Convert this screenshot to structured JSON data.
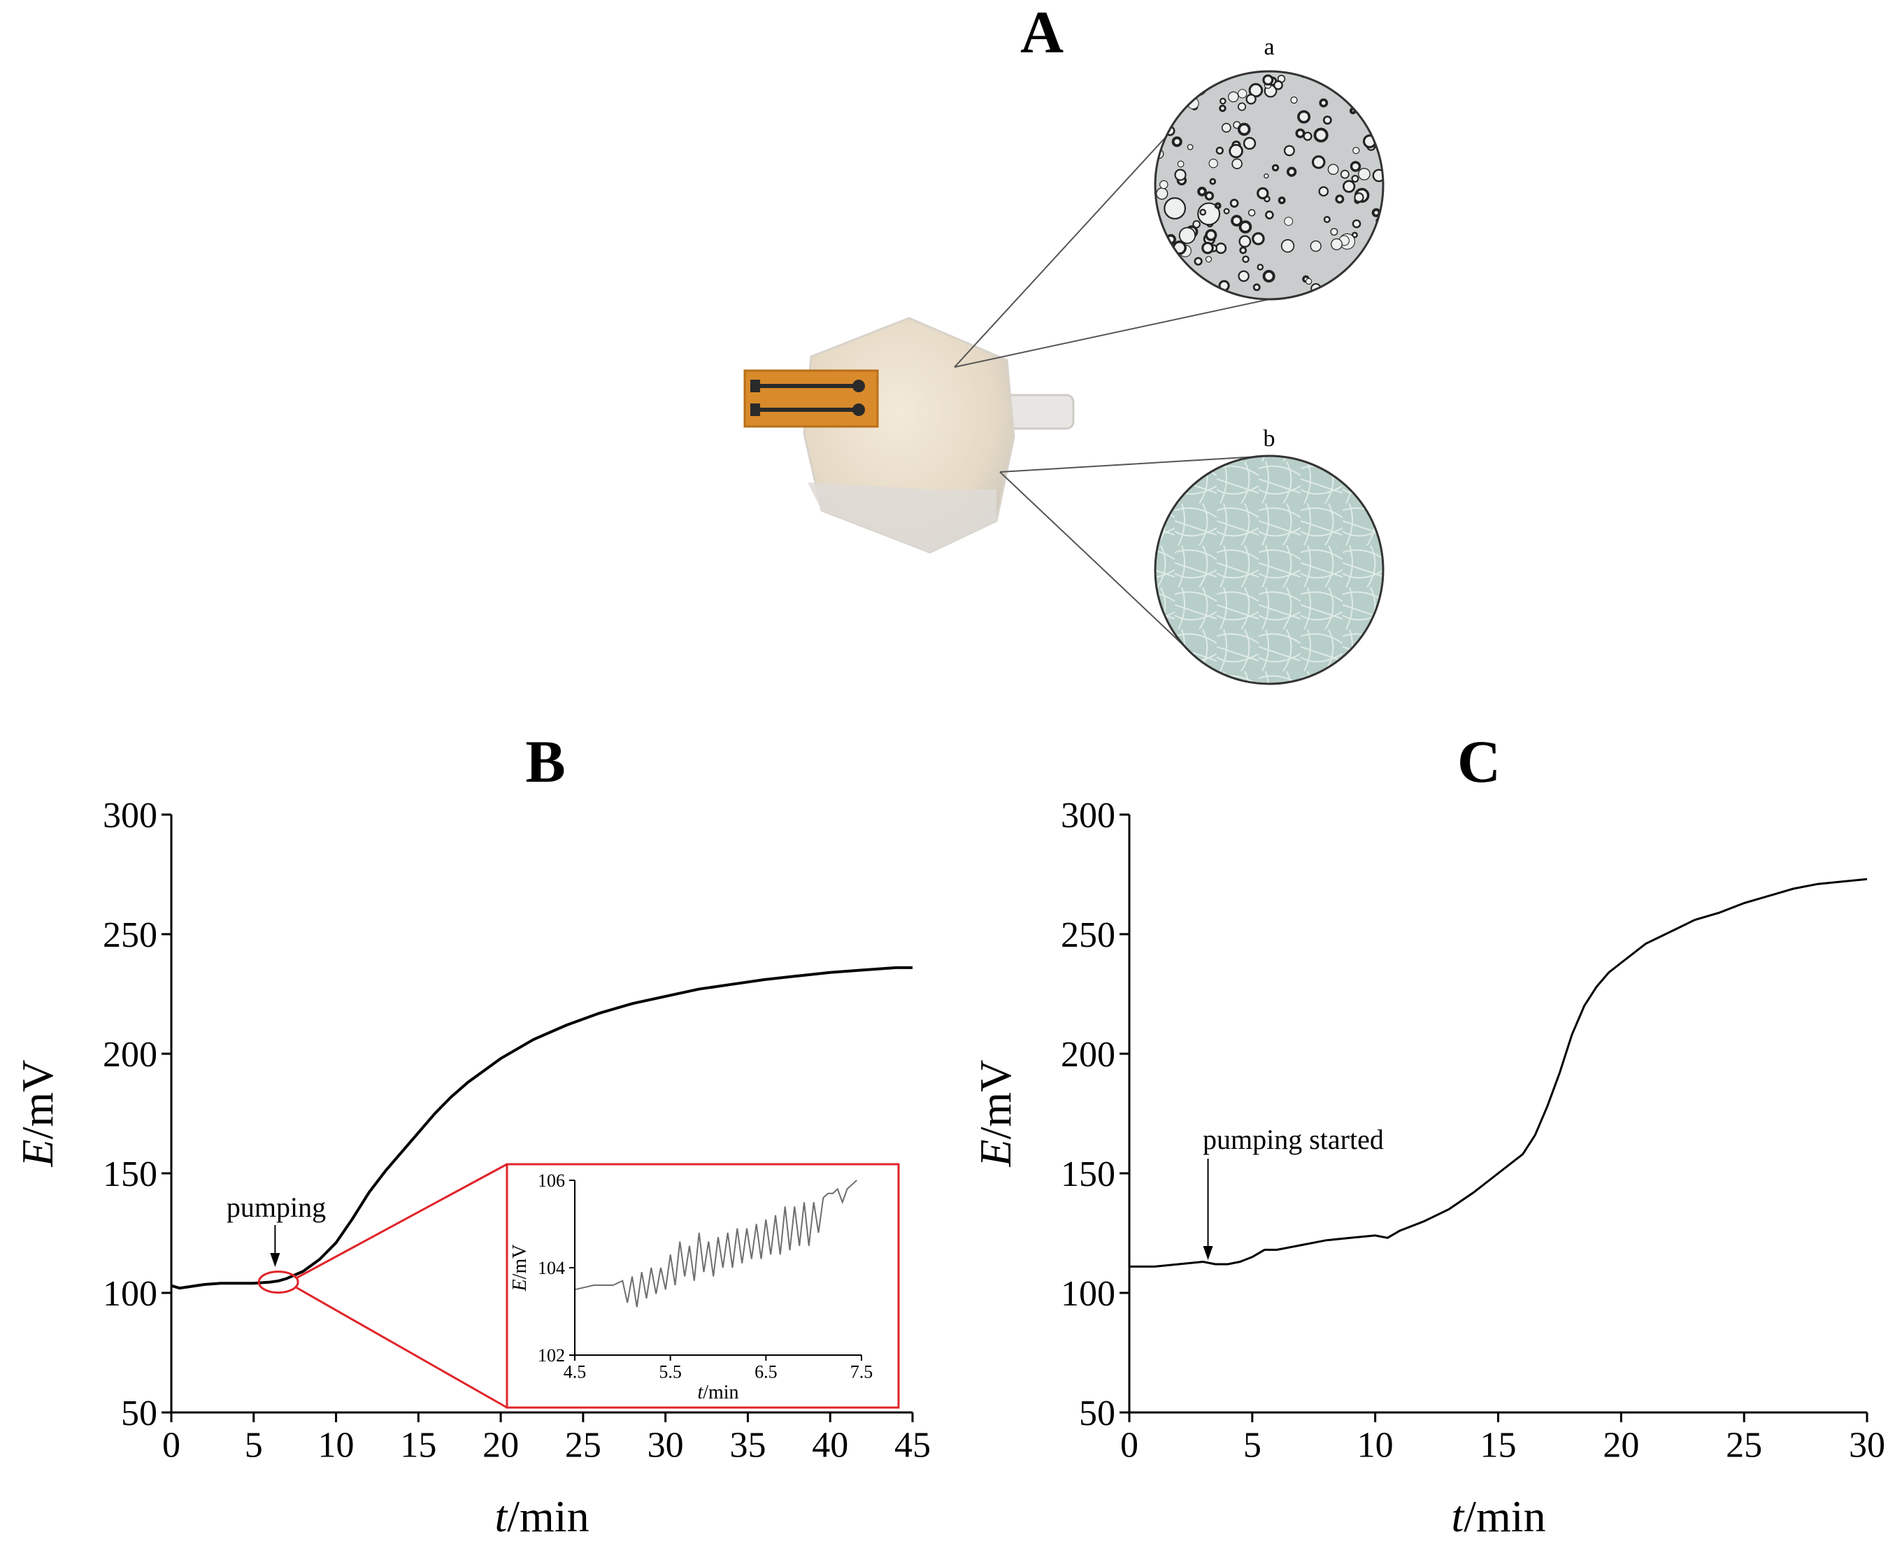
{
  "panels": {
    "A": {
      "letter": "A",
      "inset_a_label": "a",
      "inset_b_label": "b"
    },
    "B": {
      "letter": "B",
      "annotation": "pumping",
      "xlabel_italic": "t",
      "xlabel_rest": "/min",
      "ylabel_italic": "E",
      "ylabel_rest": "/mV",
      "inset": {
        "xlabel_italic": "t",
        "xlabel_rest": "/min",
        "ylabel_italic": "E",
        "ylabel_rest": "/mV"
      }
    },
    "C": {
      "letter": "C",
      "annotation": "pumping started",
      "xlabel_italic": "t",
      "xlabel_rest": "/min",
      "ylabel_italic": "E",
      "ylabel_rest": "/mV"
    }
  },
  "colors": {
    "line": "#000000",
    "inset_line": "#6e6e6e",
    "highlight": "#e0242a",
    "device_body": "#e9dfcf",
    "device_flex": "#d98b2b",
    "micro_a_bg": "#c9cdcd",
    "micro_b_bg": "#b8cec9"
  },
  "chart_data": [
    {
      "id": "B",
      "type": "line",
      "xlim": [
        0,
        45
      ],
      "ylim": [
        50,
        300
      ],
      "xticks": [
        0,
        5,
        10,
        15,
        20,
        25,
        30,
        35,
        40,
        45
      ],
      "yticks": [
        50,
        100,
        150,
        200,
        250,
        300
      ],
      "series": [
        {
          "x": [
            0,
            0.5,
            1,
            2,
            3,
            4,
            5,
            6,
            6.5,
            7,
            8,
            9,
            10,
            11,
            12,
            13,
            14,
            15,
            16,
            17,
            18,
            19,
            20,
            22,
            24,
            26,
            28,
            30,
            32,
            34,
            36,
            38,
            40,
            42,
            44,
            45
          ],
          "y": [
            103,
            102,
            102.5,
            103.5,
            104,
            104,
            104,
            104.5,
            105,
            106,
            109,
            114,
            121,
            131,
            142,
            151,
            159,
            167,
            175,
            182,
            188,
            193,
            198,
            206,
            212,
            217,
            221,
            224,
            227,
            229,
            231,
            232.5,
            234,
            235,
            236,
            236
          ]
        }
      ],
      "annotation_x": 6.3,
      "highlight_x": 6.5,
      "highlight_y": 104.5
    },
    {
      "id": "B-inset",
      "type": "line",
      "xlim": [
        4.5,
        7.5
      ],
      "ylim": [
        102,
        106
      ],
      "xticks": [
        4.5,
        5.5,
        6.5,
        7.5
      ],
      "yticks": [
        102,
        104,
        106
      ],
      "series": [
        {
          "x": [
            4.5,
            4.7,
            4.9,
            5.0,
            5.05,
            5.1,
            5.15,
            5.2,
            5.25,
            5.3,
            5.35,
            5.4,
            5.45,
            5.5,
            5.55,
            5.6,
            5.65,
            5.7,
            5.75,
            5.8,
            5.85,
            5.9,
            5.95,
            6.0,
            6.05,
            6.1,
            6.15,
            6.2,
            6.25,
            6.3,
            6.35,
            6.4,
            6.45,
            6.5,
            6.55,
            6.6,
            6.65,
            6.7,
            6.75,
            6.8,
            6.85,
            6.9,
            6.95,
            7.0,
            7.05,
            7.1,
            7.15,
            7.2,
            7.25,
            7.3,
            7.35,
            7.4,
            7.45
          ],
          "y": [
            103.5,
            103.6,
            103.6,
            103.7,
            103.2,
            103.8,
            103.1,
            103.9,
            103.3,
            104.0,
            103.4,
            104.0,
            103.5,
            104.3,
            103.6,
            104.6,
            103.8,
            104.5,
            103.7,
            104.8,
            103.9,
            104.6,
            103.8,
            104.7,
            104.0,
            104.8,
            104.0,
            104.9,
            104.1,
            104.9,
            104.2,
            105.0,
            104.2,
            105.1,
            104.3,
            105.2,
            104.3,
            105.4,
            104.4,
            105.4,
            104.5,
            105.5,
            104.5,
            105.5,
            104.8,
            105.6,
            105.7,
            105.7,
            105.8,
            105.5,
            105.8,
            105.9,
            106.0
          ]
        }
      ]
    },
    {
      "id": "C",
      "type": "line",
      "xlim": [
        0,
        30
      ],
      "ylim": [
        50,
        300
      ],
      "xticks": [
        0,
        5,
        10,
        15,
        20,
        25,
        30
      ],
      "yticks": [
        50,
        100,
        150,
        200,
        250,
        300
      ],
      "series": [
        {
          "x": [
            0,
            1,
            2,
            3,
            3.5,
            4,
            4.5,
            5,
            5.5,
            6,
            7,
            8,
            9,
            10,
            10.5,
            11,
            12,
            13,
            14,
            15,
            16,
            16.5,
            17,
            17.5,
            18,
            18.5,
            19,
            19.5,
            20,
            21,
            22,
            23,
            24,
            25,
            26,
            27,
            28,
            29,
            30
          ],
          "y": [
            111,
            111,
            112,
            113,
            112,
            112,
            113,
            115,
            118,
            118,
            120,
            122,
            123,
            124,
            123,
            126,
            130,
            135,
            142,
            150,
            158,
            166,
            178,
            192,
            208,
            220,
            228,
            234,
            238,
            246,
            251,
            256,
            259,
            263,
            266,
            269,
            271,
            272,
            273
          ]
        }
      ],
      "annotation_x": 3.2
    }
  ]
}
